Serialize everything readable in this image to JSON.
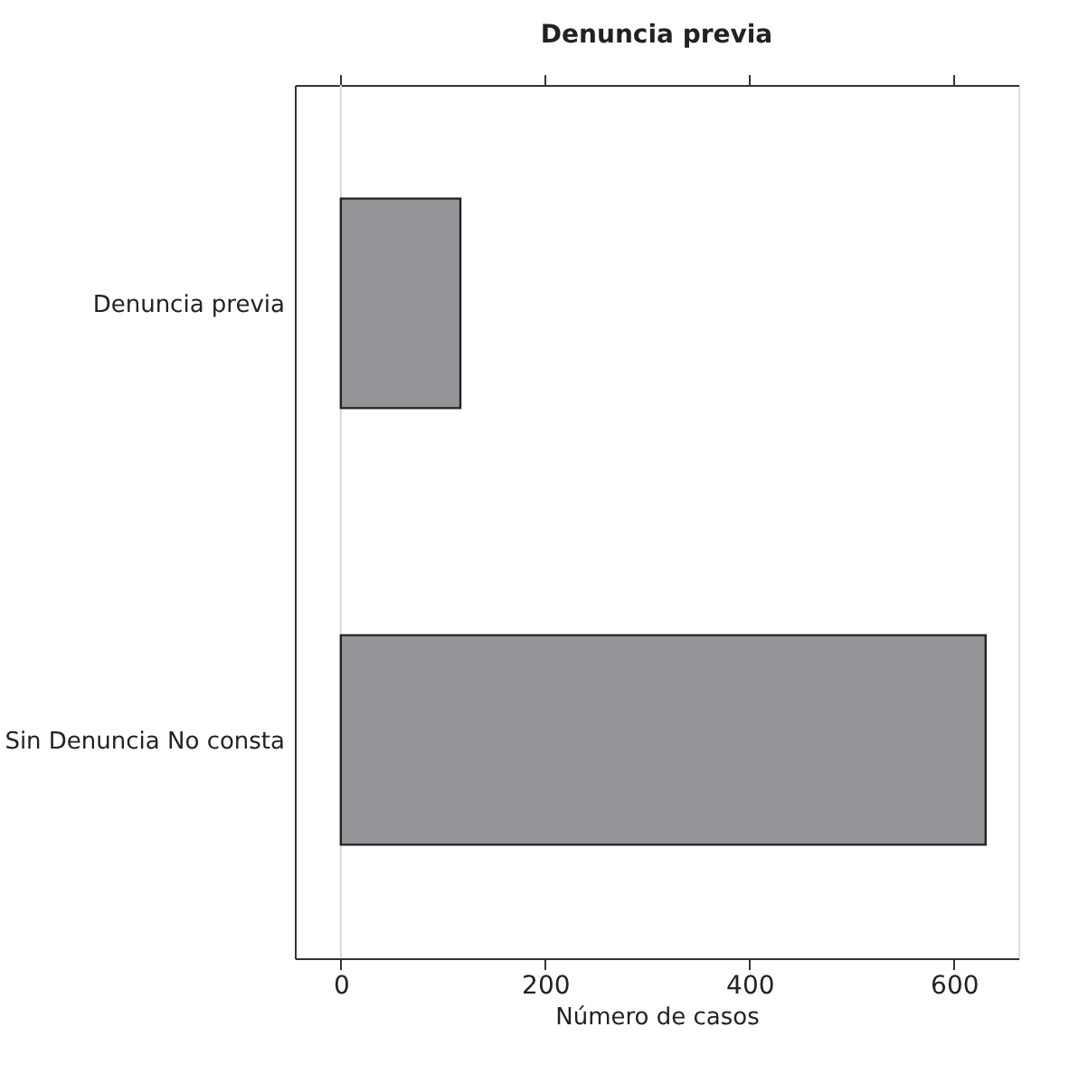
{
  "chart_data": {
    "type": "bar",
    "orientation": "horizontal",
    "title": "Denuncia previa",
    "xlabel": "Número de casos",
    "categories": [
      "Denuncia previa",
      "Sin Denuncia No consta"
    ],
    "values": [
      117,
      631
    ],
    "color": "#939598",
    "xlim": [
      -45,
      663
    ],
    "xticks": [
      0,
      200,
      400,
      600
    ],
    "ref_lines": [
      {
        "axis": "x",
        "value": 0,
        "color": "#d9d9d9"
      }
    ],
    "grid": false
  }
}
